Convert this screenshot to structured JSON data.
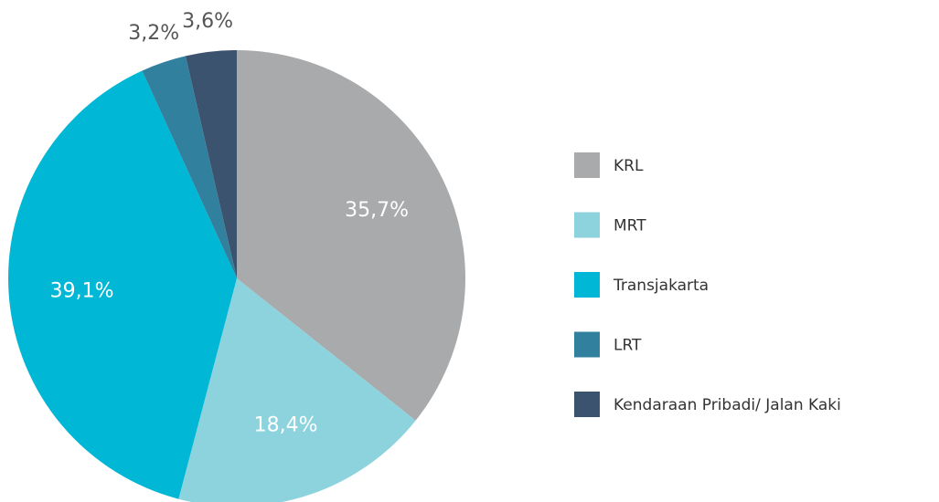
{
  "chart_data": {
    "type": "pie",
    "categories": [
      "KRL",
      "MRT",
      "Transjakarta",
      "LRT",
      "Kendaraan Pribadi/ Jalan Kaki"
    ],
    "values": [
      35.7,
      18.4,
      39.1,
      3.2,
      3.6
    ],
    "value_labels": [
      "35,7%",
      "18,4%",
      "39,1%",
      "3,2%",
      "3,6%"
    ],
    "colors": [
      "#a9aaac",
      "#8dd3de",
      "#00b8d6",
      "#31819e",
      "#3c5370"
    ],
    "legend": "right"
  }
}
